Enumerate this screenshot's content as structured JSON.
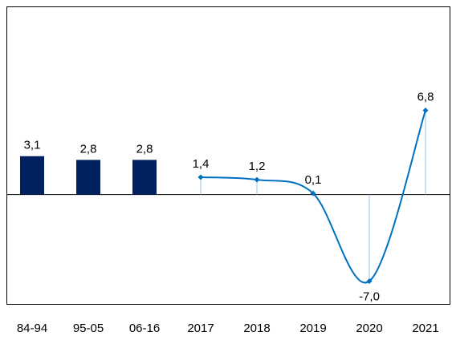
{
  "chart_data": {
    "type": "combo",
    "categories": [
      "84-94",
      "95-05",
      "06-16",
      "2017",
      "2018",
      "2019",
      "2020",
      "2021"
    ],
    "series": [
      {
        "kind": "bar",
        "color": "#002060",
        "values": [
          3.1,
          2.8,
          2.8,
          null,
          null,
          null,
          null,
          null
        ],
        "value_labels": [
          "3,1",
          "2,8",
          "2,8",
          null,
          null,
          null,
          null,
          null
        ]
      },
      {
        "kind": "line",
        "color": "#0070c0",
        "values": [
          null,
          null,
          null,
          1.4,
          1.2,
          0.1,
          -7.0,
          6.8
        ],
        "value_labels": [
          null,
          null,
          null,
          "1,4",
          "1,2",
          "0,1",
          "-7,0",
          "6,8"
        ]
      }
    ],
    "ylim": [
      -8.9,
      15.2
    ]
  }
}
